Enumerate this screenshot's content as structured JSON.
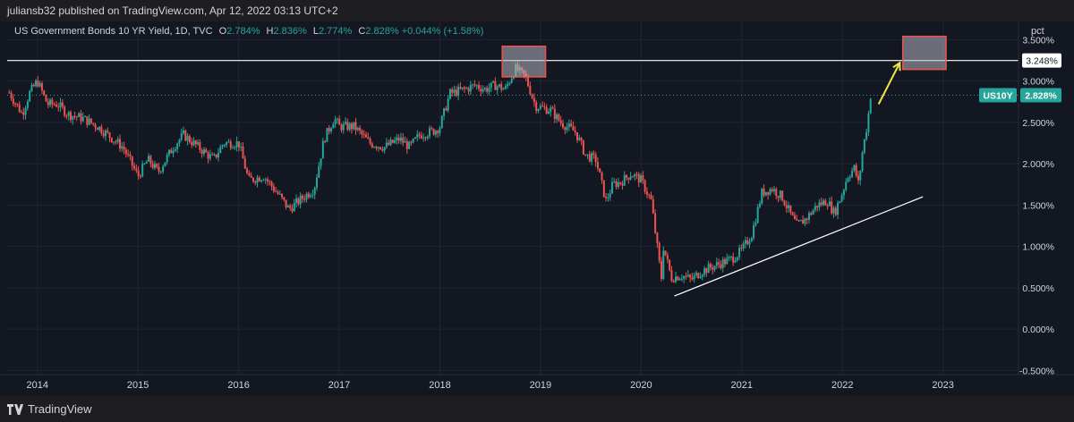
{
  "header": {
    "published": "juliansb32 published on TradingView.com, Apr 12, 2022 03:13 UTC+2"
  },
  "symbol": {
    "name": "US Government Bonds 10 YR Yield, 1D, TVC",
    "open_label": "O",
    "open": "2.784%",
    "high_label": "H",
    "high": "2.836%",
    "low_label": "L",
    "low": "2.774%",
    "close_label": "C",
    "close": "2.828%",
    "change": "+0.044% (+1.58%)"
  },
  "scale_button": "pct",
  "footer": {
    "brand": "TradingView",
    "logo_icon": "tradingview-logo-icon"
  },
  "colors": {
    "up": "#26a69a",
    "down": "#ef5350",
    "background": "#131722",
    "highlight": "#b2b5be",
    "arrow": "#f0e442"
  },
  "price_labels": {
    "level": "3.248%",
    "symbol_tag": "US10Y",
    "last": "2.828%"
  },
  "chart_data": {
    "type": "candlestick",
    "title": "US Government Bonds 10 YR Yield, 1D, TVC",
    "y_ticks": [
      "3.500%",
      "3.000%",
      "2.500%",
      "2.000%",
      "1.500%",
      "1.000%",
      "0.500%",
      "0.000%",
      "-0.500%"
    ],
    "y_tick_values": [
      3.5,
      3.0,
      2.5,
      2.0,
      1.5,
      1.0,
      0.5,
      0.0,
      -0.5
    ],
    "ylim": [
      -0.55,
      3.72
    ],
    "x_ticks": [
      "2014",
      "2015",
      "2016",
      "2017",
      "2018",
      "2019",
      "2020",
      "2021",
      "2022",
      "2023"
    ],
    "x_tick_values": [
      2014,
      2015,
      2016,
      2017,
      2018,
      2019,
      2020,
      2021,
      2022,
      2023
    ],
    "xlim": [
      2013.7,
      2023.75
    ],
    "last_x": 2022.28,
    "horizontal_level": 3.248,
    "last_value": 2.828,
    "series": [
      {
        "x": [
          2013.72,
          2013.85,
          2013.92,
          2014.0,
          2014.1,
          2014.2,
          2014.3,
          2014.45,
          2014.6,
          2014.75,
          2014.85,
          2015.0,
          2015.1,
          2015.2,
          2015.35,
          2015.45,
          2015.6,
          2015.75,
          2015.85,
          2016.0,
          2016.1,
          2016.25,
          2016.4,
          2016.5,
          2016.65,
          2016.75,
          2016.85,
          2016.95,
          2017.0,
          2017.15,
          2017.3,
          2017.45,
          2017.6,
          2017.7,
          2017.8,
          2017.95,
          2018.0,
          2018.1,
          2018.25,
          2018.35,
          2018.45,
          2018.55,
          2018.65,
          2018.75,
          2018.85,
          2018.95,
          2019.0,
          2019.1,
          2019.2,
          2019.35,
          2019.45,
          2019.55,
          2019.65,
          2019.72,
          2019.8,
          2019.9,
          2020.0,
          2020.1,
          2020.17,
          2020.2,
          2020.22,
          2020.3,
          2020.4,
          2020.5,
          2020.6,
          2020.7,
          2020.8,
          2020.9,
          2021.0,
          2021.1,
          2021.2,
          2021.3,
          2021.4,
          2021.5,
          2021.55,
          2021.65,
          2021.75,
          2021.85,
          2021.92,
          2022.0,
          2022.05,
          2022.12,
          2022.16,
          2022.2,
          2022.25,
          2022.28
        ],
        "y": [
          2.86,
          2.6,
          2.85,
          3.0,
          2.72,
          2.72,
          2.6,
          2.55,
          2.45,
          2.3,
          2.2,
          1.85,
          2.05,
          1.9,
          2.2,
          2.35,
          2.2,
          2.05,
          2.25,
          2.25,
          1.8,
          1.85,
          1.62,
          1.45,
          1.6,
          1.7,
          2.3,
          2.55,
          2.45,
          2.45,
          2.25,
          2.2,
          2.3,
          2.2,
          2.35,
          2.4,
          2.45,
          2.85,
          2.9,
          2.95,
          2.9,
          2.95,
          2.9,
          3.15,
          3.05,
          2.7,
          2.68,
          2.65,
          2.5,
          2.38,
          2.1,
          2.05,
          1.55,
          1.75,
          1.78,
          1.88,
          1.8,
          1.55,
          0.9,
          0.6,
          1.0,
          0.62,
          0.65,
          0.6,
          0.7,
          0.75,
          0.8,
          0.85,
          0.95,
          1.15,
          1.65,
          1.7,
          1.6,
          1.35,
          1.25,
          1.35,
          1.5,
          1.55,
          1.4,
          1.65,
          1.85,
          1.95,
          1.75,
          2.15,
          2.5,
          2.828
        ]
      }
    ]
  }
}
